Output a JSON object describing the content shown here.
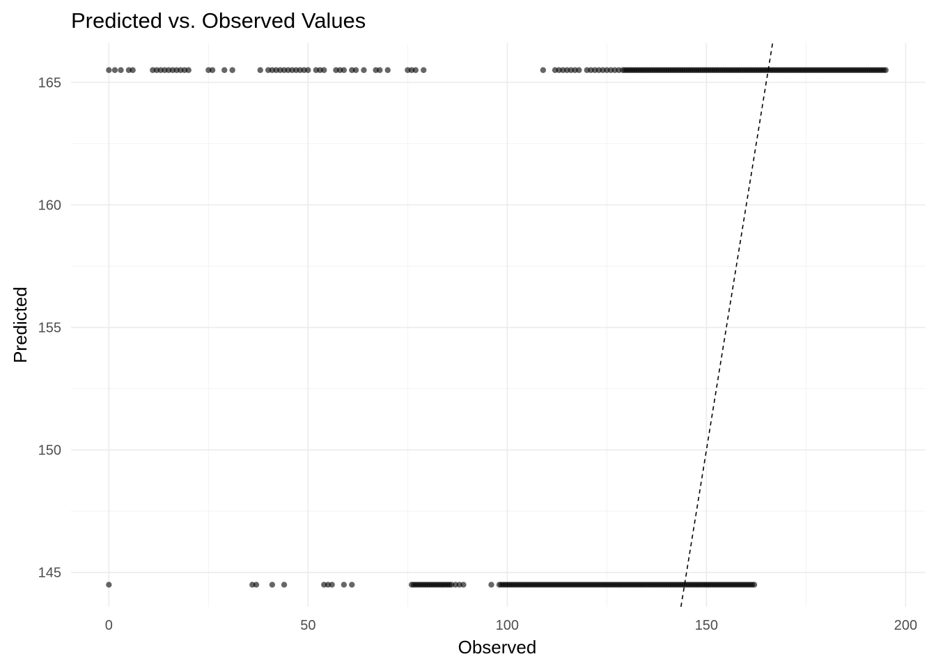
{
  "chart_data": {
    "type": "scatter",
    "title": "Predicted vs. Observed Values",
    "xlabel": "Observed",
    "ylabel": "Predicted",
    "xlim": [
      -9.5,
      205
    ],
    "ylim": [
      143.6,
      166.6
    ],
    "x_ticks": [
      0,
      50,
      100,
      150,
      200
    ],
    "y_ticks": [
      145,
      150,
      155,
      160,
      165
    ],
    "grid": true,
    "point_color": "#000000",
    "point_opacity": 0.6,
    "reference_line": {
      "style": "dashed",
      "slope": 1,
      "intercept": 0,
      "label": "y = x"
    },
    "series": [
      {
        "predicted": 165.5,
        "observed_isolated": [
          0,
          1.5,
          3,
          5,
          6,
          11,
          12,
          13,
          14,
          15,
          16,
          17,
          18,
          19,
          20,
          25,
          26,
          29,
          31,
          38,
          40,
          41,
          42,
          43,
          44,
          45,
          46,
          47,
          48,
          49,
          50,
          52,
          53,
          54,
          57,
          58,
          59,
          61,
          62,
          64,
          67,
          68,
          70,
          75,
          76,
          77,
          79,
          109,
          112,
          113,
          114,
          115,
          116,
          117,
          118,
          120,
          121,
          122,
          123,
          124,
          125,
          126,
          127,
          128
        ],
        "observed_dense_range": [
          129,
          195
        ]
      },
      {
        "predicted": 144.5,
        "observed_isolated": [
          0,
          36,
          37,
          41,
          44,
          54,
          55,
          56,
          59,
          61,
          87,
          88,
          89,
          96
        ],
        "observed_dense_range": [
          76,
          86
        ],
        "observed_dense_range_2": [
          98,
          162
        ]
      }
    ]
  }
}
